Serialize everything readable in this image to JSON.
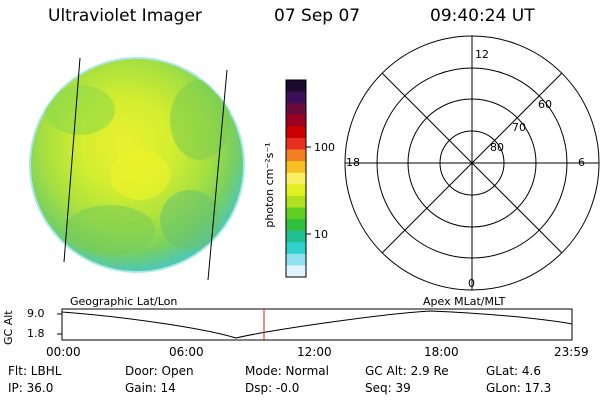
{
  "header": {
    "title": "Ultraviolet Imager",
    "date": "07 Sep 07",
    "time": "09:40:24 UT"
  },
  "colorbar": {
    "label": "photon cm⁻²s⁻¹",
    "ticks": [
      "100",
      "10"
    ],
    "colors": [
      "#1a0a2e",
      "#3b0f5a",
      "#6a0a3a",
      "#9b0020",
      "#cc0000",
      "#e83020",
      "#f08020",
      "#f8c020",
      "#f8f060",
      "#e0f020",
      "#b0e020",
      "#60d020",
      "#30c040",
      "#20c090",
      "#30d0d0",
      "#90e0f0",
      "#e0f4ff"
    ]
  },
  "polar": {
    "labels": {
      "top": "12",
      "left": "18",
      "right": "6",
      "bottom": "0"
    },
    "rings": [
      "60",
      "70",
      "80"
    ]
  },
  "timeline": {
    "left_label": "Geographic Lat/Lon",
    "right_label": "Apex  MLat/MLT",
    "yaxis_label": "GC Alt",
    "y_ticks": [
      "9.0",
      "1.8"
    ],
    "x_ticks": [
      "00:00",
      "06:00",
      "12:00",
      "18:00",
      "23:59"
    ]
  },
  "info": {
    "filter": "Flt: LBHL",
    "ip": "IP: 36.0",
    "door": "Door: Open",
    "gain": "Gain: 14",
    "mode": "Mode: Normal",
    "dsp": "Dsp:    -0.0",
    "gc_alt": "GC Alt: 2.9 Re",
    "seq": "Seq: 39",
    "glat": "GLat:   4.6",
    "glon": "GLon:  17.3"
  }
}
